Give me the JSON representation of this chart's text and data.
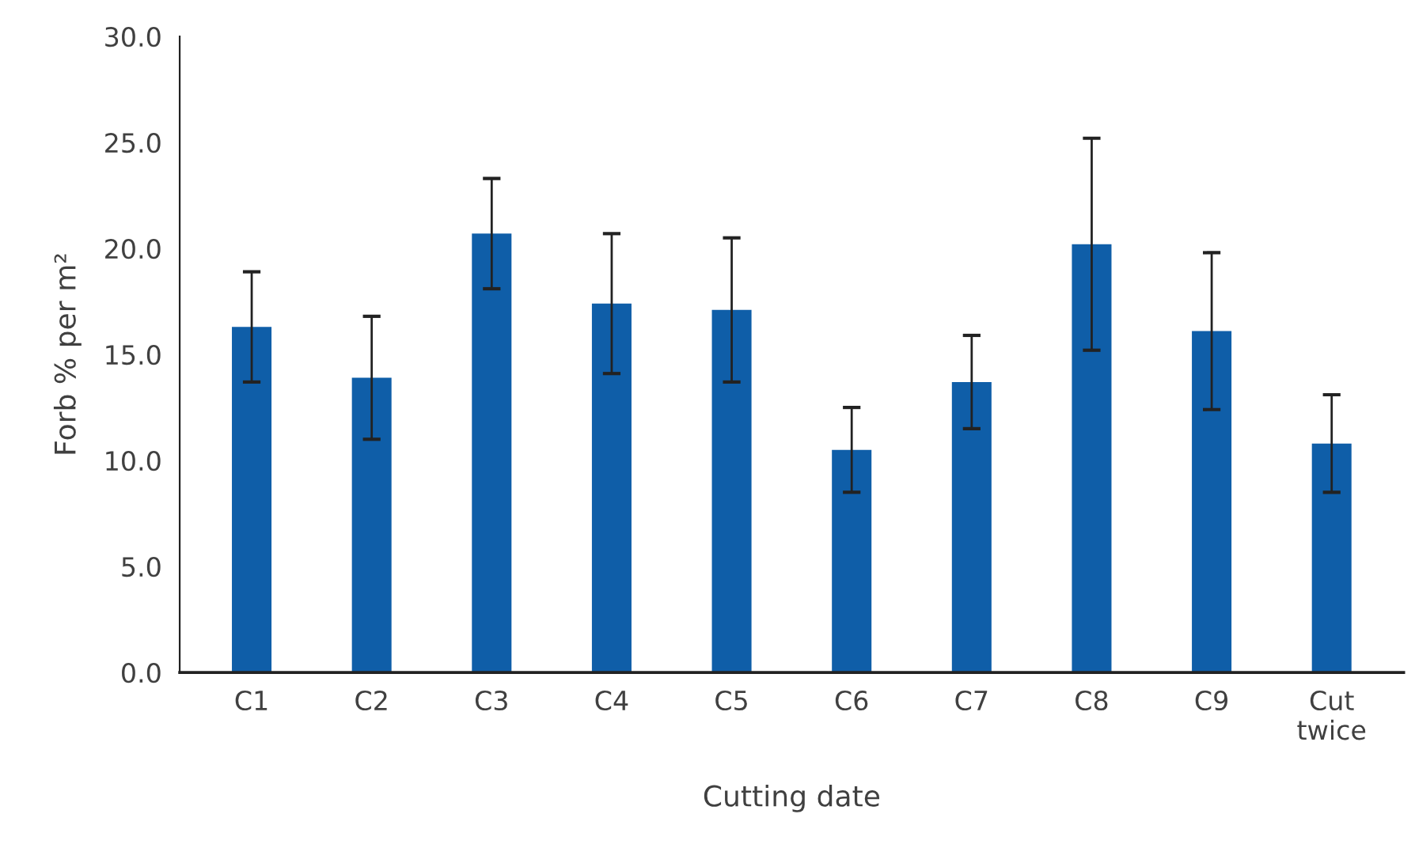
{
  "chart_data": {
    "type": "bar",
    "xlabel": "Cutting date",
    "ylabel": "Forb % per m²",
    "categories": [
      "C1",
      "C2",
      "C3",
      "C4",
      "C5",
      "C6",
      "C7",
      "C8",
      "C9",
      "Cut twice"
    ],
    "values": [
      16.3,
      13.9,
      20.7,
      17.4,
      17.1,
      10.5,
      13.7,
      20.2,
      16.1,
      10.8
    ],
    "errors": [
      2.6,
      2.9,
      2.6,
      3.3,
      3.4,
      2.0,
      2.2,
      5.0,
      3.7,
      2.3
    ],
    "color": "#0f5ea8",
    "ylim": [
      0,
      30
    ],
    "yticks": [
      {
        "value": 0,
        "label": "0.0"
      },
      {
        "value": 5,
        "label": "5.0"
      },
      {
        "value": 10,
        "label": "10.0"
      },
      {
        "value": 15,
        "label": "15.0"
      },
      {
        "value": 20,
        "label": "20.0"
      },
      {
        "value": 25,
        "label": "25.0"
      },
      {
        "value": 30,
        "label": "30.0"
      }
    ],
    "grid": false,
    "legend": false
  }
}
